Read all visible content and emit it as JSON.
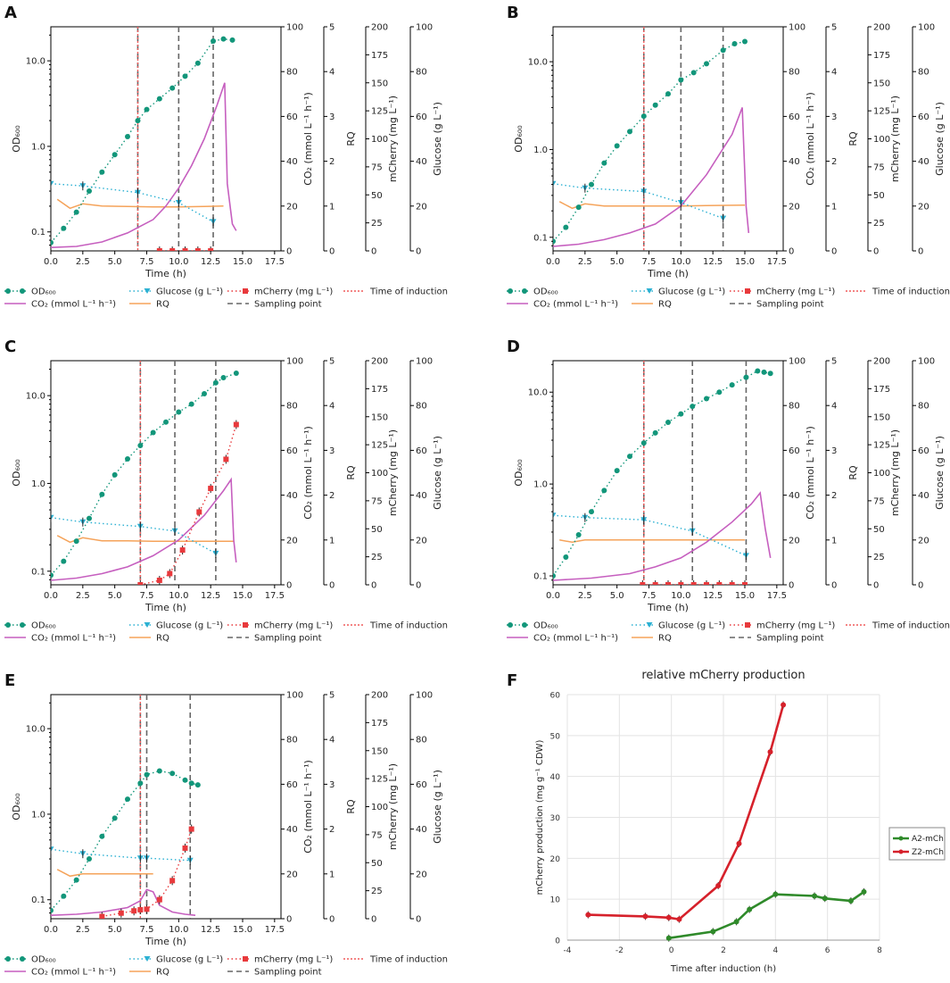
{
  "colors": {
    "od": "#12967a",
    "glucose": "#2cb1d3",
    "mcherry": "#e8393c",
    "co2": "#c65fbf",
    "rq": "#f5a35a",
    "sampling": "#666666",
    "induction": "#f05c5c",
    "a2": "#2f8a2a",
    "z2": "#d6212b"
  },
  "legend": {
    "od": "OD₆₀₀",
    "co2": "CO₂ (mmol L⁻¹ h⁻¹)",
    "glucose": "Glucose (g L⁻¹)",
    "rq": "RQ",
    "mcherry": "mCherry (mg L⁻¹)",
    "sampling": "Sampling point",
    "induction": "Time of induction"
  },
  "axis_labels": {
    "od": "OD₆₀₀",
    "co2": "CO₂ (mmol L⁻¹ h⁻¹)",
    "rq": "RQ",
    "mcherry": "mCherry (mg L⁻¹)",
    "glucose": "Glucose (g L⁻¹)",
    "time": "Time (h)"
  },
  "ticks": {
    "x": [
      "0.0",
      "2.5",
      "5.0",
      "7.5",
      "10.0",
      "12.5",
      "15.0",
      "17.5"
    ],
    "od": [
      "0.1",
      "1.0",
      "10.0"
    ],
    "co2": [
      "0",
      "20",
      "40",
      "60",
      "80",
      "100"
    ],
    "rq": [
      "0",
      "1",
      "2",
      "3",
      "4",
      "5"
    ],
    "mcherry": [
      "0",
      "25",
      "50",
      "75",
      "100",
      "125",
      "150",
      "175",
      "200"
    ],
    "glucose": [
      "0",
      "20",
      "40",
      "60",
      "80",
      "100"
    ]
  },
  "chart_data": [
    {
      "panel": "A",
      "type": "line",
      "xlim": [
        0,
        18
      ],
      "od_lim": [
        0.06,
        25
      ],
      "co2_lim": [
        0,
        100
      ],
      "rq_lim": [
        0,
        5
      ],
      "mcherry_lim": [
        0,
        200
      ],
      "glucose_lim": [
        0,
        100
      ],
      "induction": 6.8,
      "sampling": [
        6.8,
        10.0,
        12.7
      ],
      "od": [
        [
          0,
          0.075
        ],
        [
          1,
          0.11
        ],
        [
          2,
          0.17
        ],
        [
          3,
          0.3
        ],
        [
          4,
          0.5
        ],
        [
          5,
          0.8
        ],
        [
          6,
          1.3
        ],
        [
          6.8,
          2.0
        ],
        [
          7.5,
          2.7
        ],
        [
          8.5,
          3.6
        ],
        [
          9.5,
          4.8
        ],
        [
          10.5,
          6.6
        ],
        [
          11.5,
          9.4
        ],
        [
          12.7,
          17
        ],
        [
          13.5,
          18
        ],
        [
          14.2,
          17.5
        ]
      ],
      "glucose": [
        [
          0,
          30
        ],
        [
          2.5,
          29
        ],
        [
          6.8,
          26
        ],
        [
          10,
          21.5
        ],
        [
          12.7,
          13
        ]
      ],
      "mcherry": [
        [
          8.5,
          0
        ],
        [
          9.5,
          0
        ],
        [
          10.5,
          0
        ],
        [
          11.5,
          0
        ],
        [
          12.5,
          0
        ]
      ],
      "co2": [
        [
          0,
          1.5
        ],
        [
          2,
          2
        ],
        [
          4,
          4
        ],
        [
          6,
          8
        ],
        [
          8,
          14
        ],
        [
          9,
          20
        ],
        [
          10,
          28
        ],
        [
          11,
          38
        ],
        [
          12,
          50
        ],
        [
          13,
          65
        ],
        [
          13.6,
          75
        ],
        [
          13.8,
          30
        ],
        [
          14.2,
          12
        ],
        [
          14.5,
          9
        ]
      ],
      "rq": [
        [
          0.5,
          1.15
        ],
        [
          1.5,
          0.95
        ],
        [
          2.5,
          1.05
        ],
        [
          4,
          1
        ],
        [
          6,
          0.99
        ],
        [
          8,
          0.98
        ],
        [
          10,
          0.98
        ],
        [
          12,
          0.99
        ],
        [
          13.5,
          1
        ]
      ]
    },
    {
      "panel": "B",
      "type": "line",
      "xlim": [
        0,
        18
      ],
      "od_lim": [
        0.07,
        25
      ],
      "co2_lim": [
        0,
        100
      ],
      "rq_lim": [
        0,
        5
      ],
      "mcherry_lim": [
        0,
        200
      ],
      "glucose_lim": [
        0,
        100
      ],
      "induction": 7.1,
      "sampling": [
        7.1,
        10.0,
        13.3
      ],
      "od": [
        [
          0,
          0.09
        ],
        [
          1,
          0.13
        ],
        [
          2,
          0.22
        ],
        [
          3,
          0.4
        ],
        [
          4,
          0.7
        ],
        [
          5,
          1.1
        ],
        [
          6,
          1.6
        ],
        [
          7.1,
          2.4
        ],
        [
          8,
          3.2
        ],
        [
          9,
          4.3
        ],
        [
          10,
          6.2
        ],
        [
          11,
          7.5
        ],
        [
          12,
          9.5
        ],
        [
          13.3,
          13.5
        ],
        [
          14.2,
          16
        ],
        [
          15,
          17
        ]
      ],
      "glucose": [
        [
          0,
          30
        ],
        [
          2.5,
          28
        ],
        [
          7.1,
          26.5
        ],
        [
          10,
          21.5
        ],
        [
          13.3,
          14.5
        ]
      ],
      "mcherry": [],
      "co2": [
        [
          0,
          2
        ],
        [
          2,
          3
        ],
        [
          4,
          5
        ],
        [
          6,
          8
        ],
        [
          8,
          12
        ],
        [
          10,
          20
        ],
        [
          12,
          34
        ],
        [
          14,
          52
        ],
        [
          14.8,
          64
        ],
        [
          15.1,
          20
        ],
        [
          15.3,
          8
        ]
      ],
      "rq": [
        [
          0.5,
          1.1
        ],
        [
          1.5,
          0.95
        ],
        [
          2.5,
          1.05
        ],
        [
          4,
          1
        ],
        [
          6,
          1
        ],
        [
          8,
          1
        ],
        [
          10,
          1
        ],
        [
          12,
          1.01
        ],
        [
          15,
          1.02
        ]
      ]
    },
    {
      "panel": "C",
      "type": "line",
      "xlim": [
        0,
        18
      ],
      "od_lim": [
        0.07,
        25
      ],
      "co2_lim": [
        0,
        100
      ],
      "rq_lim": [
        0,
        5
      ],
      "mcherry_lim": [
        0,
        200
      ],
      "glucose_lim": [
        0,
        100
      ],
      "induction": 7.0,
      "sampling": [
        7.0,
        9.7,
        12.9
      ],
      "od": [
        [
          0,
          0.09
        ],
        [
          1,
          0.13
        ],
        [
          2,
          0.22
        ],
        [
          3,
          0.4
        ],
        [
          4,
          0.75
        ],
        [
          5,
          1.25
        ],
        [
          6,
          1.9
        ],
        [
          7,
          2.7
        ],
        [
          8,
          3.8
        ],
        [
          9,
          5.0
        ],
        [
          10,
          6.5
        ],
        [
          11,
          8.0
        ],
        [
          12,
          10.5
        ],
        [
          12.9,
          14
        ],
        [
          13.5,
          16
        ],
        [
          14.5,
          18
        ]
      ],
      "glucose": [
        [
          0,
          30
        ],
        [
          2.5,
          28
        ],
        [
          7,
          26
        ],
        [
          9.7,
          24
        ],
        [
          12.9,
          14
        ]
      ],
      "mcherry": [
        [
          7,
          0
        ],
        [
          8.5,
          4
        ],
        [
          9.3,
          10
        ],
        [
          10.3,
          31
        ],
        [
          11.6,
          65
        ],
        [
          12.5,
          86
        ],
        [
          13.7,
          112
        ],
        [
          14.5,
          143
        ]
      ],
      "co2": [
        [
          0,
          2
        ],
        [
          2,
          3
        ],
        [
          4,
          5
        ],
        [
          6,
          8
        ],
        [
          8,
          13
        ],
        [
          10,
          20
        ],
        [
          12,
          31
        ],
        [
          13.5,
          42
        ],
        [
          14.1,
          47
        ],
        [
          14.3,
          20
        ],
        [
          14.5,
          10
        ]
      ],
      "rq": [
        [
          0.5,
          1.1
        ],
        [
          1.5,
          0.95
        ],
        [
          2.5,
          1.05
        ],
        [
          4,
          0.98
        ],
        [
          6,
          0.98
        ],
        [
          8,
          0.97
        ],
        [
          10,
          0.97
        ],
        [
          12,
          0.97
        ],
        [
          14.3,
          0.97
        ]
      ]
    },
    {
      "panel": "D",
      "type": "line",
      "xlim": [
        0,
        18
      ],
      "od_lim": [
        0.08,
        22
      ],
      "co2_lim": [
        0,
        100
      ],
      "rq_lim": [
        0,
        5
      ],
      "mcherry_lim": [
        0,
        200
      ],
      "glucose_lim": [
        0,
        100
      ],
      "induction": 7.1,
      "sampling": [
        7.1,
        10.9,
        15.1
      ],
      "od": [
        [
          0,
          0.1
        ],
        [
          1,
          0.16
        ],
        [
          2,
          0.28
        ],
        [
          3,
          0.5
        ],
        [
          4,
          0.85
        ],
        [
          5,
          1.4
        ],
        [
          6,
          2.0
        ],
        [
          7.1,
          2.8
        ],
        [
          8,
          3.6
        ],
        [
          9,
          4.7
        ],
        [
          10,
          5.8
        ],
        [
          10.9,
          7.0
        ],
        [
          12,
          8.5
        ],
        [
          13,
          10
        ],
        [
          14,
          12
        ],
        [
          15.1,
          14.5
        ],
        [
          16,
          17
        ],
        [
          16.5,
          16.5
        ],
        [
          17,
          16
        ]
      ],
      "glucose": [
        [
          0,
          31
        ],
        [
          2.5,
          30
        ],
        [
          7.1,
          29
        ],
        [
          10.9,
          24
        ],
        [
          15.1,
          13
        ]
      ],
      "mcherry": [
        [
          7,
          0
        ],
        [
          8,
          0
        ],
        [
          9,
          0
        ],
        [
          10,
          0
        ],
        [
          11,
          0
        ],
        [
          12,
          0
        ],
        [
          13,
          0
        ],
        [
          14,
          0
        ],
        [
          15,
          0
        ]
      ],
      "co2": [
        [
          0,
          2
        ],
        [
          3,
          3
        ],
        [
          6,
          5
        ],
        [
          8,
          8
        ],
        [
          10,
          12
        ],
        [
          12,
          19
        ],
        [
          14,
          28
        ],
        [
          15.5,
          36
        ],
        [
          16.2,
          41
        ],
        [
          16.6,
          25
        ],
        [
          17,
          12
        ]
      ],
      "rq": [
        [
          0.5,
          1.0
        ],
        [
          1.5,
          0.95
        ],
        [
          2.5,
          1.0
        ],
        [
          5,
          1.0
        ],
        [
          7,
          1.0
        ],
        [
          9,
          1.0
        ],
        [
          11,
          1.0
        ],
        [
          13,
          1.0
        ],
        [
          15,
          1.0
        ]
      ]
    },
    {
      "panel": "E",
      "type": "line",
      "xlim": [
        0,
        18
      ],
      "od_lim": [
        0.06,
        25
      ],
      "co2_lim": [
        0,
        100
      ],
      "rq_lim": [
        0,
        5
      ],
      "mcherry_lim": [
        0,
        200
      ],
      "glucose_lim": [
        0,
        100
      ],
      "induction": 7.0,
      "sampling": [
        7.0,
        7.5,
        10.9
      ],
      "od": [
        [
          0,
          0.075
        ],
        [
          1,
          0.11
        ],
        [
          2,
          0.17
        ],
        [
          3,
          0.3
        ],
        [
          4,
          0.55
        ],
        [
          5,
          0.9
        ],
        [
          6,
          1.5
        ],
        [
          7,
          2.3
        ],
        [
          7.5,
          2.9
        ],
        [
          8.5,
          3.2
        ],
        [
          9.5,
          3.0
        ],
        [
          10.5,
          2.5
        ],
        [
          11,
          2.3
        ],
        [
          11.5,
          2.2
        ]
      ],
      "glucose": [
        [
          0,
          31
        ],
        [
          2.5,
          29
        ],
        [
          7,
          27
        ],
        [
          7.5,
          27
        ],
        [
          10.9,
          26
        ]
      ],
      "mcherry": [
        [
          4,
          2
        ],
        [
          5.5,
          5
        ],
        [
          6.5,
          7
        ],
        [
          7,
          8
        ],
        [
          7.5,
          8.5
        ],
        [
          8.5,
          17
        ],
        [
          9.5,
          34
        ],
        [
          10.5,
          63
        ],
        [
          11,
          80
        ]
      ],
      "co2": [
        [
          0,
          1.5
        ],
        [
          2,
          2
        ],
        [
          4,
          3
        ],
        [
          6,
          5
        ],
        [
          7,
          8
        ],
        [
          7.5,
          13
        ],
        [
          8,
          12
        ],
        [
          8.5,
          6
        ],
        [
          9.5,
          3
        ],
        [
          10.5,
          2
        ],
        [
          11.3,
          1.5
        ]
      ],
      "rq": [
        [
          0.5,
          1.1
        ],
        [
          1.5,
          0.95
        ],
        [
          2.5,
          1.0
        ],
        [
          4,
          1.0
        ],
        [
          6,
          1.0
        ],
        [
          7,
          1.0
        ],
        [
          8,
          1.0
        ]
      ]
    },
    {
      "panel": "F",
      "type": "line",
      "title": "relative mCherry production",
      "xlabel": "Time after induction (h)",
      "ylabel": "mCherry production (mg g⁻¹ CDW)",
      "xlim": [
        -4,
        8
      ],
      "ylim": [
        0,
        60
      ],
      "xticks": [
        "-4",
        "-2",
        "0",
        "2",
        "4",
        "6",
        "8"
      ],
      "yticks": [
        "0",
        "10",
        "20",
        "30",
        "40",
        "50",
        "60"
      ],
      "grid": true,
      "legend_position": "right",
      "series": [
        {
          "name": "A2-mCh",
          "color": "#2f8a2a",
          "points": [
            [
              -0.1,
              0.5
            ],
            [
              1.6,
              2.1
            ],
            [
              2.5,
              4.5
            ],
            [
              3.0,
              7.5
            ],
            [
              4.0,
              11.2
            ],
            [
              5.5,
              10.8
            ],
            [
              5.9,
              10.2
            ],
            [
              6.9,
              9.6
            ],
            [
              7.4,
              11.8
            ]
          ]
        },
        {
          "name": "Z2-mCh",
          "color": "#d6212b",
          "points": [
            [
              -3.2,
              6.2
            ],
            [
              -1.0,
              5.8
            ],
            [
              -0.1,
              5.5
            ],
            [
              0.3,
              5.1
            ],
            [
              1.8,
              13.3
            ],
            [
              2.6,
              23.6
            ],
            [
              3.8,
              46.0
            ],
            [
              4.3,
              57.5
            ]
          ]
        }
      ]
    }
  ]
}
